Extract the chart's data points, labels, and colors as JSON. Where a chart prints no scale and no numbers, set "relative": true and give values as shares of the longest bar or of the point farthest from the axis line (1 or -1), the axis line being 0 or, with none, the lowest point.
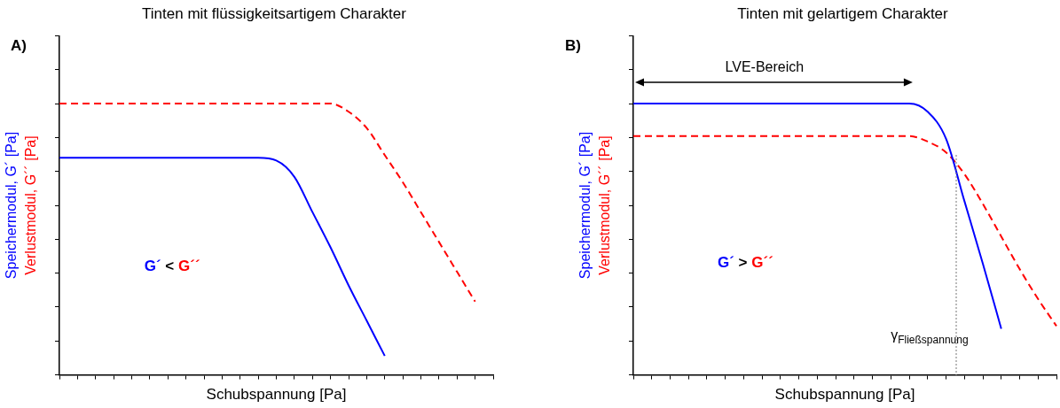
{
  "chart_data": [
    {
      "type": "line",
      "title": "Tinten mit flüssigkeitsartigem Charakter",
      "xlabel": "Schubspannung [Pa]",
      "relative": true,
      "tick_labels": false,
      "grid": false,
      "legend": false,
      "marker": "none",
      "categories": [
        null,
        null,
        null,
        null,
        null,
        null,
        null,
        null,
        null,
        null,
        null,
        null,
        null,
        null,
        null,
        null,
        null,
        null,
        null,
        null,
        null,
        null,
        null,
        null,
        null
      ],
      "series": [
        {
          "name": "Speichermodul, G´ [Pa]",
          "color": "#0000ff",
          "line_style": "solid",
          "values": [
            0.8,
            0.8,
            0.8,
            0.8,
            0.8,
            0.8,
            0.8,
            0.8,
            0.8,
            0.8,
            0.8,
            0.8,
            0.79,
            0.73,
            0.6,
            0.47,
            0.33,
            0.2,
            0.07,
            null,
            null,
            null,
            null,
            null,
            null
          ]
        },
        {
          "name": "Verlustmodul, G´´ [Pa]",
          "color": "#ff0000",
          "line_style": "dashed",
          "values": [
            1,
            1,
            1,
            1,
            1,
            1,
            1,
            1,
            1,
            1,
            1,
            1,
            1,
            1,
            1,
            1,
            0.97,
            0.91,
            0.81,
            0.71,
            0.6,
            0.49,
            0.38,
            0.27,
            null
          ]
        }
      ],
      "annotations": [
        "A)",
        "G´ < G´´"
      ]
    },
    {
      "type": "line",
      "title": "Tinten mit gelartigem Charakter",
      "xlabel": "Schubspannung [Pa]",
      "relative": true,
      "tick_labels": false,
      "grid": false,
      "legend": false,
      "marker": "none",
      "categories": [
        null,
        null,
        null,
        null,
        null,
        null,
        null,
        null,
        null,
        null,
        null,
        null,
        null,
        null,
        null,
        null,
        null,
        null,
        null,
        null,
        null,
        null,
        null,
        null
      ],
      "series": [
        {
          "name": "Speichermodul, G´ [Pa]",
          "color": "#0000ff",
          "line_style": "solid",
          "values": [
            1,
            1,
            1,
            1,
            1,
            1,
            1,
            1,
            1,
            1,
            1,
            1,
            1,
            1,
            1,
            1,
            0.97,
            0.87,
            0.64,
            0.41,
            0.17,
            null,
            null,
            null
          ]
        },
        {
          "name": "Verlustmodul, G´´ [Pa]",
          "color": "#ff0000",
          "line_style": "dashed",
          "values": [
            0.88,
            0.88,
            0.88,
            0.88,
            0.88,
            0.88,
            0.88,
            0.88,
            0.88,
            0.88,
            0.88,
            0.88,
            0.88,
            0.88,
            0.88,
            0.88,
            0.86,
            0.82,
            0.74,
            0.63,
            0.51,
            0.39,
            0.28,
            0.18
          ]
        }
      ],
      "annotations": [
        "B)",
        "LVE-Bereich",
        "G´ > G´´",
        "γ$_{Fließspannung}$"
      ]
    }
  ]
}
